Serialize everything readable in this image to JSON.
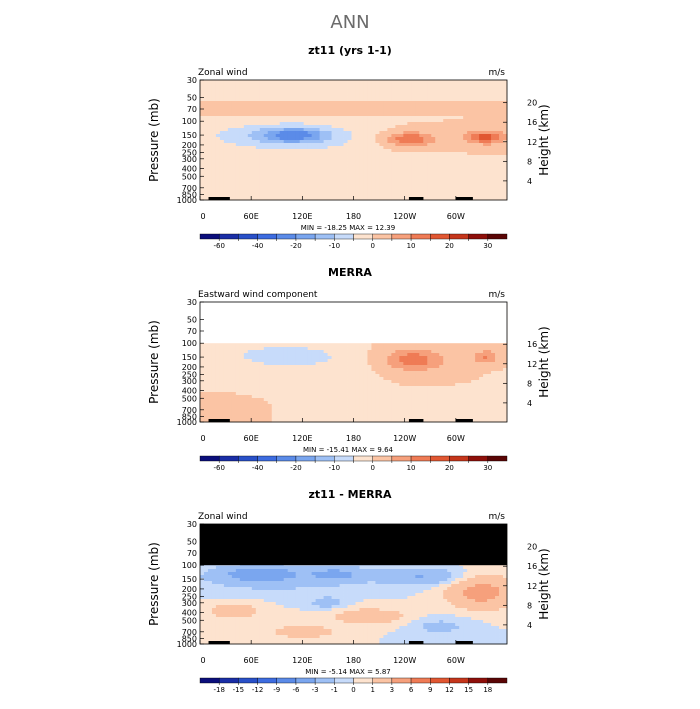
{
  "page": {
    "title": "ANN"
  },
  "chart_data": [
    {
      "type": "heatmap",
      "title": "zt11 (yrs 1-1)",
      "subtitle": "Zonal wind",
      "units": "m/s",
      "ylabel_left": "Pressure (mb)",
      "ylabel_right": "Height (km)",
      "pressure_ticks": [
        "30",
        "50",
        "70",
        "100",
        "150",
        "200",
        "250",
        "300",
        "400",
        "500",
        "700",
        "850",
        "1000"
      ],
      "height_ticks": [
        "20",
        "16",
        "12",
        "8",
        "4"
      ],
      "xticks": [
        "0",
        "60E",
        "120E",
        "180",
        "120W",
        "60W"
      ],
      "x_range_deg": [
        0,
        360
      ],
      "top_pressure": 30,
      "mask_above_pressure": null,
      "minmax": "MIN = -18.25   MAX =  12.39",
      "colorbar": {
        "levels": [
          "-60",
          "-50",
          "-40",
          "-30",
          "-20",
          "-15",
          "-10",
          "-5",
          "0",
          "5",
          "10",
          "15",
          "20",
          "25",
          "30"
        ],
        "shown_labels": [
          "-60",
          "-40",
          "-20",
          "-10",
          "0",
          "10",
          "20",
          "30"
        ],
        "colors": [
          "#0b0e7b",
          "#1a2ea6",
          "#2950c8",
          "#3d6ce0",
          "#5b8be8",
          "#7aa6ef",
          "#9ec0f5",
          "#c7dbfa",
          "#fde3cf",
          "#fbc4a4",
          "#f6a07c",
          "#ef7b55",
          "#e15732",
          "#c5361b",
          "#8e0f0a",
          "#5a0505"
        ]
      },
      "features": [
        {
          "kind": "band",
          "value": 3,
          "p_top": 55,
          "p_bottom": 85
        },
        {
          "kind": "blob",
          "value": -3,
          "lon": 140,
          "p": 190,
          "w": 170,
          "hp": 170
        },
        {
          "kind": "blob",
          "value": -8,
          "lon": 95,
          "p": 150,
          "w": 110,
          "hp": 90
        },
        {
          "kind": "blob",
          "value": -15,
          "lon": 110,
          "p": 150,
          "w": 45,
          "hp": 45
        },
        {
          "kind": "blob",
          "value": 6,
          "lon": 245,
          "p": 170,
          "w": 60,
          "hp": 80
        },
        {
          "kind": "blob",
          "value": 11,
          "lon": 245,
          "p": 170,
          "w": 30,
          "hp": 45
        },
        {
          "kind": "blob",
          "value": 6,
          "lon": 335,
          "p": 160,
          "w": 50,
          "hp": 70
        },
        {
          "kind": "blob",
          "value": 12,
          "lon": 335,
          "p": 160,
          "w": 22,
          "hp": 35
        },
        {
          "kind": "blob",
          "value": -3,
          "lon": 15,
          "p": 700,
          "w": 30,
          "hp": 130
        }
      ]
    },
    {
      "type": "heatmap",
      "title": "MERRA",
      "subtitle": "Eastward wind component",
      "units": "m/s",
      "ylabel_left": "Pressure (mb)",
      "ylabel_right": "Height (km)",
      "pressure_ticks": [
        "30",
        "50",
        "70",
        "100",
        "150",
        "200",
        "250",
        "300",
        "400",
        "500",
        "700",
        "850",
        "1000"
      ],
      "height_ticks": [
        "16",
        "12",
        "8",
        "4"
      ],
      "xticks": [
        "0",
        "60E",
        "120E",
        "180",
        "120W",
        "60W"
      ],
      "x_range_deg": [
        0,
        360
      ],
      "top_pressure": 30,
      "mask_above_pressure": 100,
      "minmax": "MIN = -15.41   MAX =   9.64",
      "colorbar": {
        "levels": [
          "-60",
          "-50",
          "-40",
          "-30",
          "-20",
          "-15",
          "-10",
          "-5",
          "0",
          "5",
          "10",
          "15",
          "20",
          "25",
          "30"
        ],
        "shown_labels": [
          "-60",
          "-40",
          "-20",
          "-10",
          "0",
          "10",
          "20",
          "30"
        ],
        "colors": [
          "#0b0e7b",
          "#1a2ea6",
          "#2950c8",
          "#3d6ce0",
          "#5b8be8",
          "#7aa6ef",
          "#9ec0f5",
          "#c7dbfa",
          "#fde3cf",
          "#fbc4a4",
          "#f6a07c",
          "#ef7b55",
          "#e15732",
          "#c5361b",
          "#8e0f0a",
          "#5a0505"
        ]
      },
      "features": [
        {
          "kind": "blob",
          "value": -3,
          "lon": 140,
          "p": 200,
          "w": 170,
          "hp": 180
        },
        {
          "kind": "blob",
          "value": -8,
          "lon": 100,
          "p": 140,
          "w": 70,
          "hp": 60
        },
        {
          "kind": "blob",
          "value": -3,
          "lon": 300,
          "p": 600,
          "w": 130,
          "hp": 300
        },
        {
          "kind": "blob",
          "value": 5,
          "lon": 250,
          "p": 180,
          "w": 70,
          "hp": 140
        },
        {
          "kind": "blob",
          "value": 10,
          "lon": 250,
          "p": 160,
          "w": 38,
          "hp": 70
        },
        {
          "kind": "blob",
          "value": 10,
          "lon": 335,
          "p": 150,
          "w": 20,
          "hp": 45
        },
        {
          "kind": "blob",
          "value": 3,
          "lon": 20,
          "p": 650,
          "w": 40,
          "hp": 250
        }
      ]
    },
    {
      "type": "heatmap",
      "title": "zt11 - MERRA",
      "subtitle": "Zonal wind",
      "units": "m/s",
      "ylabel_left": "Pressure (mb)",
      "ylabel_right": "Height (km)",
      "pressure_ticks": [
        "30",
        "50",
        "70",
        "100",
        "150",
        "200",
        "250",
        "300",
        "400",
        "500",
        "700",
        "850",
        "1000"
      ],
      "height_ticks": [
        "20",
        "16",
        "12",
        "8",
        "4"
      ],
      "xticks": [
        "0",
        "60E",
        "120E",
        "180",
        "120W",
        "60W"
      ],
      "x_range_deg": [
        0,
        360
      ],
      "top_pressure": 30,
      "mask_above_pressure": 100,
      "mask_style": "black",
      "minmax": "MIN = -5.14   MAX =  5.87",
      "colorbar": {
        "levels": [
          "-18",
          "-15",
          "-12",
          "-9",
          "-6",
          "-3",
          "-1",
          "0",
          "1",
          "3",
          "6",
          "9",
          "12",
          "15",
          "18"
        ],
        "shown_labels": [
          "-18",
          "-15",
          "-12",
          "-9",
          "-6",
          "-3",
          "-1",
          "0",
          "1",
          "3",
          "6",
          "9",
          "12",
          "15",
          "18"
        ],
        "colors": [
          "#0b0e7b",
          "#1a2ea6",
          "#2950c8",
          "#3d6ce0",
          "#5b8be8",
          "#7aa6ef",
          "#9ec0f5",
          "#c7dbfa",
          "#fde3cf",
          "#fbc4a4",
          "#f6a07c",
          "#ef7b55",
          "#e15732",
          "#c5361b",
          "#8e0f0a",
          "#5a0505"
        ]
      },
      "features": [
        {
          "kind": "blob",
          "value": -1.5,
          "lon": 90,
          "p": 150,
          "w": 130,
          "hp": 110
        },
        {
          "kind": "blob",
          "value": -4,
          "lon": 70,
          "p": 130,
          "w": 55,
          "hp": 40
        },
        {
          "kind": "blob",
          "value": -3,
          "lon": 160,
          "p": 130,
          "w": 40,
          "hp": 40
        },
        {
          "kind": "blob",
          "value": -3,
          "lon": 260,
          "p": 140,
          "w": 60,
          "hp": 50
        },
        {
          "kind": "blob",
          "value": 4,
          "lon": 330,
          "p": 220,
          "w": 50,
          "hp": 180
        },
        {
          "kind": "blob",
          "value": 2,
          "lon": 40,
          "p": 380,
          "w": 40,
          "hp": 150
        },
        {
          "kind": "blob",
          "value": 2,
          "lon": 200,
          "p": 450,
          "w": 60,
          "hp": 180
        },
        {
          "kind": "blob",
          "value": 2,
          "lon": 120,
          "p": 700,
          "w": 50,
          "hp": 200
        },
        {
          "kind": "blob",
          "value": -1.5,
          "lon": 280,
          "p": 600,
          "w": 45,
          "hp": 250
        },
        {
          "kind": "blob",
          "value": -2,
          "lon": 150,
          "p": 300,
          "w": 25,
          "hp": 70
        }
      ]
    }
  ]
}
